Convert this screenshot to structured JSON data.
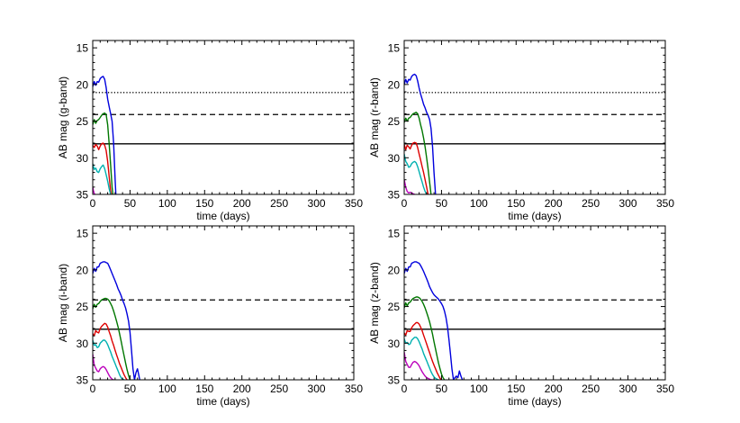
{
  "chart_data": [
    {
      "type": "line",
      "xlabel": "time (days)",
      "ylabel": "AB mag (g-band)",
      "xlim": [
        0,
        350
      ],
      "ylim": [
        35,
        14
      ],
      "y_inverted": true,
      "xticks": [
        0,
        50,
        100,
        150,
        200,
        250,
        300,
        350
      ],
      "yticks": [
        15,
        20,
        25,
        30,
        35
      ],
      "reference_lines": [
        {
          "style": "dotted",
          "color": "#000000",
          "y": 21.1
        },
        {
          "style": "dashed",
          "color": "#000000",
          "y": 24.1
        },
        {
          "style": "solid",
          "color": "#000000",
          "y": 28.1
        }
      ],
      "series": [
        {
          "color": "#0000dd",
          "x": [
            0,
            2,
            4,
            6,
            8,
            10,
            12,
            14,
            16,
            18,
            20,
            22,
            24,
            26,
            28,
            30,
            31
          ],
          "y": [
            20.3,
            19.6,
            20.1,
            19.6,
            19.7,
            19.2,
            19.0,
            18.9,
            19.3,
            20.4,
            22.0,
            23.0,
            24.0,
            25.0,
            28.0,
            33.0,
            35.0
          ]
        },
        {
          "color": "#007700",
          "x": [
            0,
            2,
            4,
            6,
            8,
            10,
            12,
            14,
            16,
            18,
            20,
            22,
            24,
            26,
            27
          ],
          "y": [
            25.5,
            24.8,
            25.3,
            24.9,
            24.8,
            24.5,
            24.2,
            24.0,
            23.9,
            24.1,
            25.5,
            28.0,
            31.0,
            34.0,
            35.0
          ]
        },
        {
          "color": "#dd0000",
          "x": [
            0,
            2,
            4,
            6,
            8,
            10,
            12,
            14,
            16,
            18,
            20,
            22,
            24,
            25
          ],
          "y": [
            28.3,
            28.6,
            28.2,
            28.4,
            28.9,
            28.4,
            28.1,
            28.0,
            28.3,
            29.0,
            30.5,
            32.5,
            34.5,
            35.0
          ]
        },
        {
          "color": "#00b0b0",
          "x": [
            0,
            2,
            4,
            6,
            8,
            10,
            12,
            14,
            16,
            18,
            20,
            22,
            24
          ],
          "y": [
            30.8,
            31.6,
            31.4,
            31.9,
            32.0,
            31.5,
            31.2,
            31.0,
            31.5,
            32.3,
            33.2,
            34.2,
            35.0
          ]
        },
        {
          "color": "#bb00bb",
          "x": [
            0,
            1,
            2,
            3
          ],
          "y": [
            34.0,
            34.5,
            34.9,
            35.0
          ]
        }
      ]
    },
    {
      "type": "line",
      "xlabel": "time (days)",
      "ylabel": "AB mag (r-band)",
      "xlim": [
        0,
        350
      ],
      "ylim": [
        35,
        14
      ],
      "y_inverted": true,
      "xticks": [
        0,
        50,
        100,
        150,
        200,
        250,
        300,
        350
      ],
      "yticks": [
        15,
        20,
        25,
        30,
        35
      ],
      "reference_lines": [
        {
          "style": "dotted",
          "color": "#000000",
          "y": 21.1
        },
        {
          "style": "dashed",
          "color": "#000000",
          "y": 24.1
        },
        {
          "style": "solid",
          "color": "#000000",
          "y": 28.1
        }
      ],
      "series": [
        {
          "color": "#0000dd",
          "x": [
            0,
            2,
            4,
            6,
            8,
            10,
            12,
            14,
            16,
            18,
            20,
            22,
            24,
            26,
            28,
            30,
            32,
            34,
            36,
            38,
            40,
            42
          ],
          "y": [
            20.0,
            19.3,
            19.8,
            19.3,
            19.4,
            18.9,
            18.7,
            18.6,
            18.8,
            19.5,
            20.5,
            21.3,
            22.0,
            22.7,
            23.2,
            23.8,
            24.2,
            24.8,
            26.0,
            28.5,
            32.0,
            35.0
          ]
        },
        {
          "color": "#007700",
          "x": [
            0,
            2,
            4,
            6,
            8,
            10,
            12,
            14,
            16,
            18,
            20,
            22,
            24,
            26,
            28,
            30,
            32,
            34,
            36
          ],
          "y": [
            25.2,
            24.6,
            25.0,
            24.6,
            24.5,
            24.2,
            24.0,
            23.9,
            23.8,
            24.0,
            24.6,
            25.5,
            26.3,
            27.3,
            28.5,
            30.0,
            31.5,
            33.3,
            35.0
          ]
        },
        {
          "color": "#dd0000",
          "x": [
            0,
            2,
            4,
            6,
            8,
            10,
            12,
            14,
            16,
            18,
            20,
            22,
            24,
            26,
            28,
            30,
            32
          ],
          "y": [
            28.2,
            28.9,
            28.3,
            28.5,
            28.8,
            28.3,
            28.0,
            27.9,
            28.0,
            28.6,
            29.5,
            30.3,
            31.2,
            32.0,
            33.0,
            34.0,
            35.0
          ]
        },
        {
          "color": "#00b0b0",
          "x": [
            0,
            2,
            4,
            6,
            8,
            10,
            12,
            14,
            16,
            18,
            20,
            22,
            24,
            26,
            28,
            30
          ],
          "y": [
            29.5,
            30.5,
            30.8,
            31.3,
            31.2,
            30.8,
            30.6,
            30.5,
            30.7,
            31.2,
            31.9,
            32.6,
            33.3,
            34.0,
            34.6,
            35.0
          ]
        },
        {
          "color": "#bb00bb",
          "x": [
            0,
            2,
            4,
            6,
            8,
            10,
            12,
            14
          ],
          "y": [
            33.0,
            34.0,
            34.6,
            34.8,
            34.7,
            34.8,
            34.9,
            35.0
          ]
        }
      ]
    },
    {
      "type": "line",
      "xlabel": "time (days)",
      "ylabel": "AB mag (i-band)",
      "xlim": [
        0,
        350
      ],
      "ylim": [
        35,
        14
      ],
      "y_inverted": true,
      "xticks": [
        0,
        50,
        100,
        150,
        200,
        250,
        300,
        350
      ],
      "yticks": [
        15,
        20,
        25,
        30,
        35
      ],
      "reference_lines": [
        {
          "style": "dashed",
          "color": "#000000",
          "y": 24.1
        },
        {
          "style": "solid",
          "color": "#000000",
          "y": 28.1
        }
      ],
      "series": [
        {
          "color": "#0000dd",
          "x": [
            0,
            2,
            4,
            6,
            8,
            10,
            12,
            14,
            16,
            18,
            20,
            22,
            24,
            26,
            28,
            30,
            32,
            34,
            36,
            38,
            40,
            42,
            44,
            46,
            48,
            50,
            52,
            54,
            56,
            58,
            60,
            62,
            63
          ],
          "y": [
            20.5,
            19.8,
            20.2,
            19.6,
            19.6,
            19.1,
            19.0,
            18.9,
            18.9,
            19.0,
            19.1,
            19.5,
            20.0,
            20.5,
            21.0,
            21.5,
            22.0,
            22.6,
            23.0,
            23.5,
            24.1,
            24.6,
            25.2,
            26.0,
            27.0,
            28.5,
            31.0,
            33.5,
            35.0,
            34.0,
            33.5,
            34.5,
            35.0
          ]
        },
        {
          "color": "#007700",
          "x": [
            0,
            2,
            4,
            6,
            8,
            10,
            12,
            14,
            16,
            18,
            20,
            22,
            24,
            26,
            28,
            30,
            32,
            34,
            36,
            38,
            40,
            42,
            44,
            46,
            48,
            50
          ],
          "y": [
            25.3,
            24.7,
            25.1,
            24.7,
            24.6,
            24.3,
            24.1,
            24.0,
            23.9,
            23.9,
            24.0,
            24.2,
            24.6,
            25.0,
            25.6,
            26.3,
            27.0,
            27.8,
            28.7,
            29.7,
            30.7,
            31.7,
            32.7,
            33.6,
            34.4,
            35.0
          ]
        },
        {
          "color": "#dd0000",
          "x": [
            0,
            2,
            4,
            6,
            8,
            10,
            12,
            14,
            16,
            18,
            20,
            22,
            24,
            26,
            28,
            30,
            32,
            34,
            36,
            38,
            40,
            42,
            44,
            46
          ],
          "y": [
            28.7,
            29.0,
            28.3,
            28.5,
            28.6,
            28.0,
            27.7,
            27.5,
            27.3,
            27.4,
            27.8,
            28.4,
            29.0,
            29.7,
            30.3,
            31.0,
            31.6,
            32.2,
            32.8,
            33.3,
            33.8,
            34.3,
            34.7,
            35.0
          ]
        },
        {
          "color": "#00b0b0",
          "x": [
            0,
            2,
            4,
            6,
            8,
            10,
            12,
            14,
            16,
            18,
            20,
            22,
            24,
            26,
            28,
            30,
            32,
            34,
            36,
            38,
            40,
            42
          ],
          "y": [
            29.6,
            30.3,
            30.2,
            30.6,
            30.5,
            30.0,
            29.8,
            29.6,
            29.6,
            29.8,
            30.2,
            30.7,
            31.2,
            31.8,
            32.3,
            32.8,
            33.3,
            33.8,
            34.3,
            34.7,
            34.9,
            35.0
          ]
        },
        {
          "color": "#bb00bb",
          "x": [
            0,
            2,
            4,
            6,
            8,
            10,
            12,
            14,
            16,
            18,
            20,
            22,
            24,
            26,
            28
          ],
          "y": [
            31.5,
            33.0,
            33.4,
            33.8,
            33.9,
            33.5,
            33.3,
            33.2,
            33.3,
            33.6,
            34.0,
            34.4,
            34.7,
            34.9,
            35.0
          ]
        }
      ]
    },
    {
      "type": "line",
      "xlabel": "time (days)",
      "ylabel": "AB mag (z-band)",
      "xlim": [
        0,
        350
      ],
      "ylim": [
        35,
        14
      ],
      "y_inverted": true,
      "xticks": [
        0,
        50,
        100,
        150,
        200,
        250,
        300,
        350
      ],
      "yticks": [
        15,
        20,
        25,
        30,
        35
      ],
      "reference_lines": [
        {
          "style": "dashed",
          "color": "#000000",
          "y": 24.1
        },
        {
          "style": "solid",
          "color": "#000000",
          "y": 28.1
        }
      ],
      "series": [
        {
          "color": "#0000dd",
          "x": [
            0,
            2,
            4,
            6,
            8,
            10,
            12,
            14,
            16,
            18,
            20,
            22,
            24,
            26,
            28,
            30,
            32,
            34,
            36,
            38,
            40,
            42,
            44,
            46,
            48,
            50,
            52,
            54,
            56,
            58,
            60,
            62,
            64,
            66,
            68,
            70,
            72,
            74,
            76,
            78
          ],
          "y": [
            20.5,
            19.8,
            20.2,
            19.6,
            19.6,
            19.1,
            19.0,
            18.9,
            18.9,
            19.0,
            19.1,
            19.4,
            19.8,
            20.2,
            20.7,
            21.2,
            21.7,
            22.3,
            22.7,
            23.1,
            23.4,
            23.6,
            23.8,
            24.0,
            24.3,
            24.6,
            25.0,
            25.6,
            26.5,
            27.8,
            29.5,
            31.5,
            33.5,
            35.0,
            34.7,
            34.5,
            34.7,
            33.8,
            34.5,
            35.0
          ]
        },
        {
          "color": "#007700",
          "x": [
            0,
            2,
            4,
            6,
            8,
            10,
            12,
            14,
            16,
            18,
            20,
            22,
            24,
            26,
            28,
            30,
            32,
            34,
            36,
            38,
            40,
            42,
            44,
            46,
            48,
            50,
            52,
            54
          ],
          "y": [
            25.2,
            24.5,
            24.9,
            24.5,
            24.4,
            24.1,
            23.9,
            23.8,
            23.7,
            23.7,
            23.8,
            24.0,
            24.3,
            24.7,
            25.2,
            25.8,
            26.4,
            27.1,
            27.9,
            28.8,
            29.8,
            30.8,
            31.8,
            32.7,
            33.5,
            34.2,
            34.7,
            35.0
          ]
        },
        {
          "color": "#dd0000",
          "x": [
            0,
            2,
            4,
            6,
            8,
            10,
            12,
            14,
            16,
            18,
            20,
            22,
            24,
            26,
            28,
            30,
            32,
            34,
            36,
            38,
            40,
            42,
            44,
            46,
            48,
            50
          ],
          "y": [
            28.6,
            28.9,
            28.3,
            28.4,
            28.4,
            27.9,
            27.6,
            27.4,
            27.2,
            27.2,
            27.4,
            27.8,
            28.3,
            28.9,
            29.5,
            30.1,
            30.7,
            31.3,
            31.9,
            32.5,
            33.0,
            33.5,
            34.0,
            34.4,
            34.8,
            35.0
          ]
        },
        {
          "color": "#00b0b0",
          "x": [
            0,
            2,
            4,
            6,
            8,
            10,
            12,
            14,
            16,
            18,
            20,
            22,
            24,
            26,
            28,
            30,
            32,
            34,
            36,
            38,
            40,
            42,
            44,
            46
          ],
          "y": [
            29.4,
            30.0,
            29.9,
            30.2,
            30.1,
            29.6,
            29.4,
            29.2,
            29.2,
            29.4,
            29.8,
            30.3,
            30.8,
            31.4,
            31.9,
            32.4,
            32.9,
            33.4,
            33.9,
            34.3,
            34.6,
            34.8,
            34.9,
            35.0
          ]
        },
        {
          "color": "#bb00bb",
          "x": [
            0,
            2,
            4,
            6,
            8,
            10,
            12,
            14,
            16,
            18,
            20,
            22,
            24,
            26,
            28,
            30,
            32,
            34,
            36,
            38
          ],
          "y": [
            31.2,
            32.5,
            32.9,
            33.3,
            33.3,
            32.9,
            32.6,
            32.5,
            32.6,
            32.8,
            33.1,
            33.5,
            33.9,
            34.2,
            34.5,
            34.7,
            34.8,
            34.9,
            35.0,
            35.0
          ]
        }
      ]
    }
  ]
}
